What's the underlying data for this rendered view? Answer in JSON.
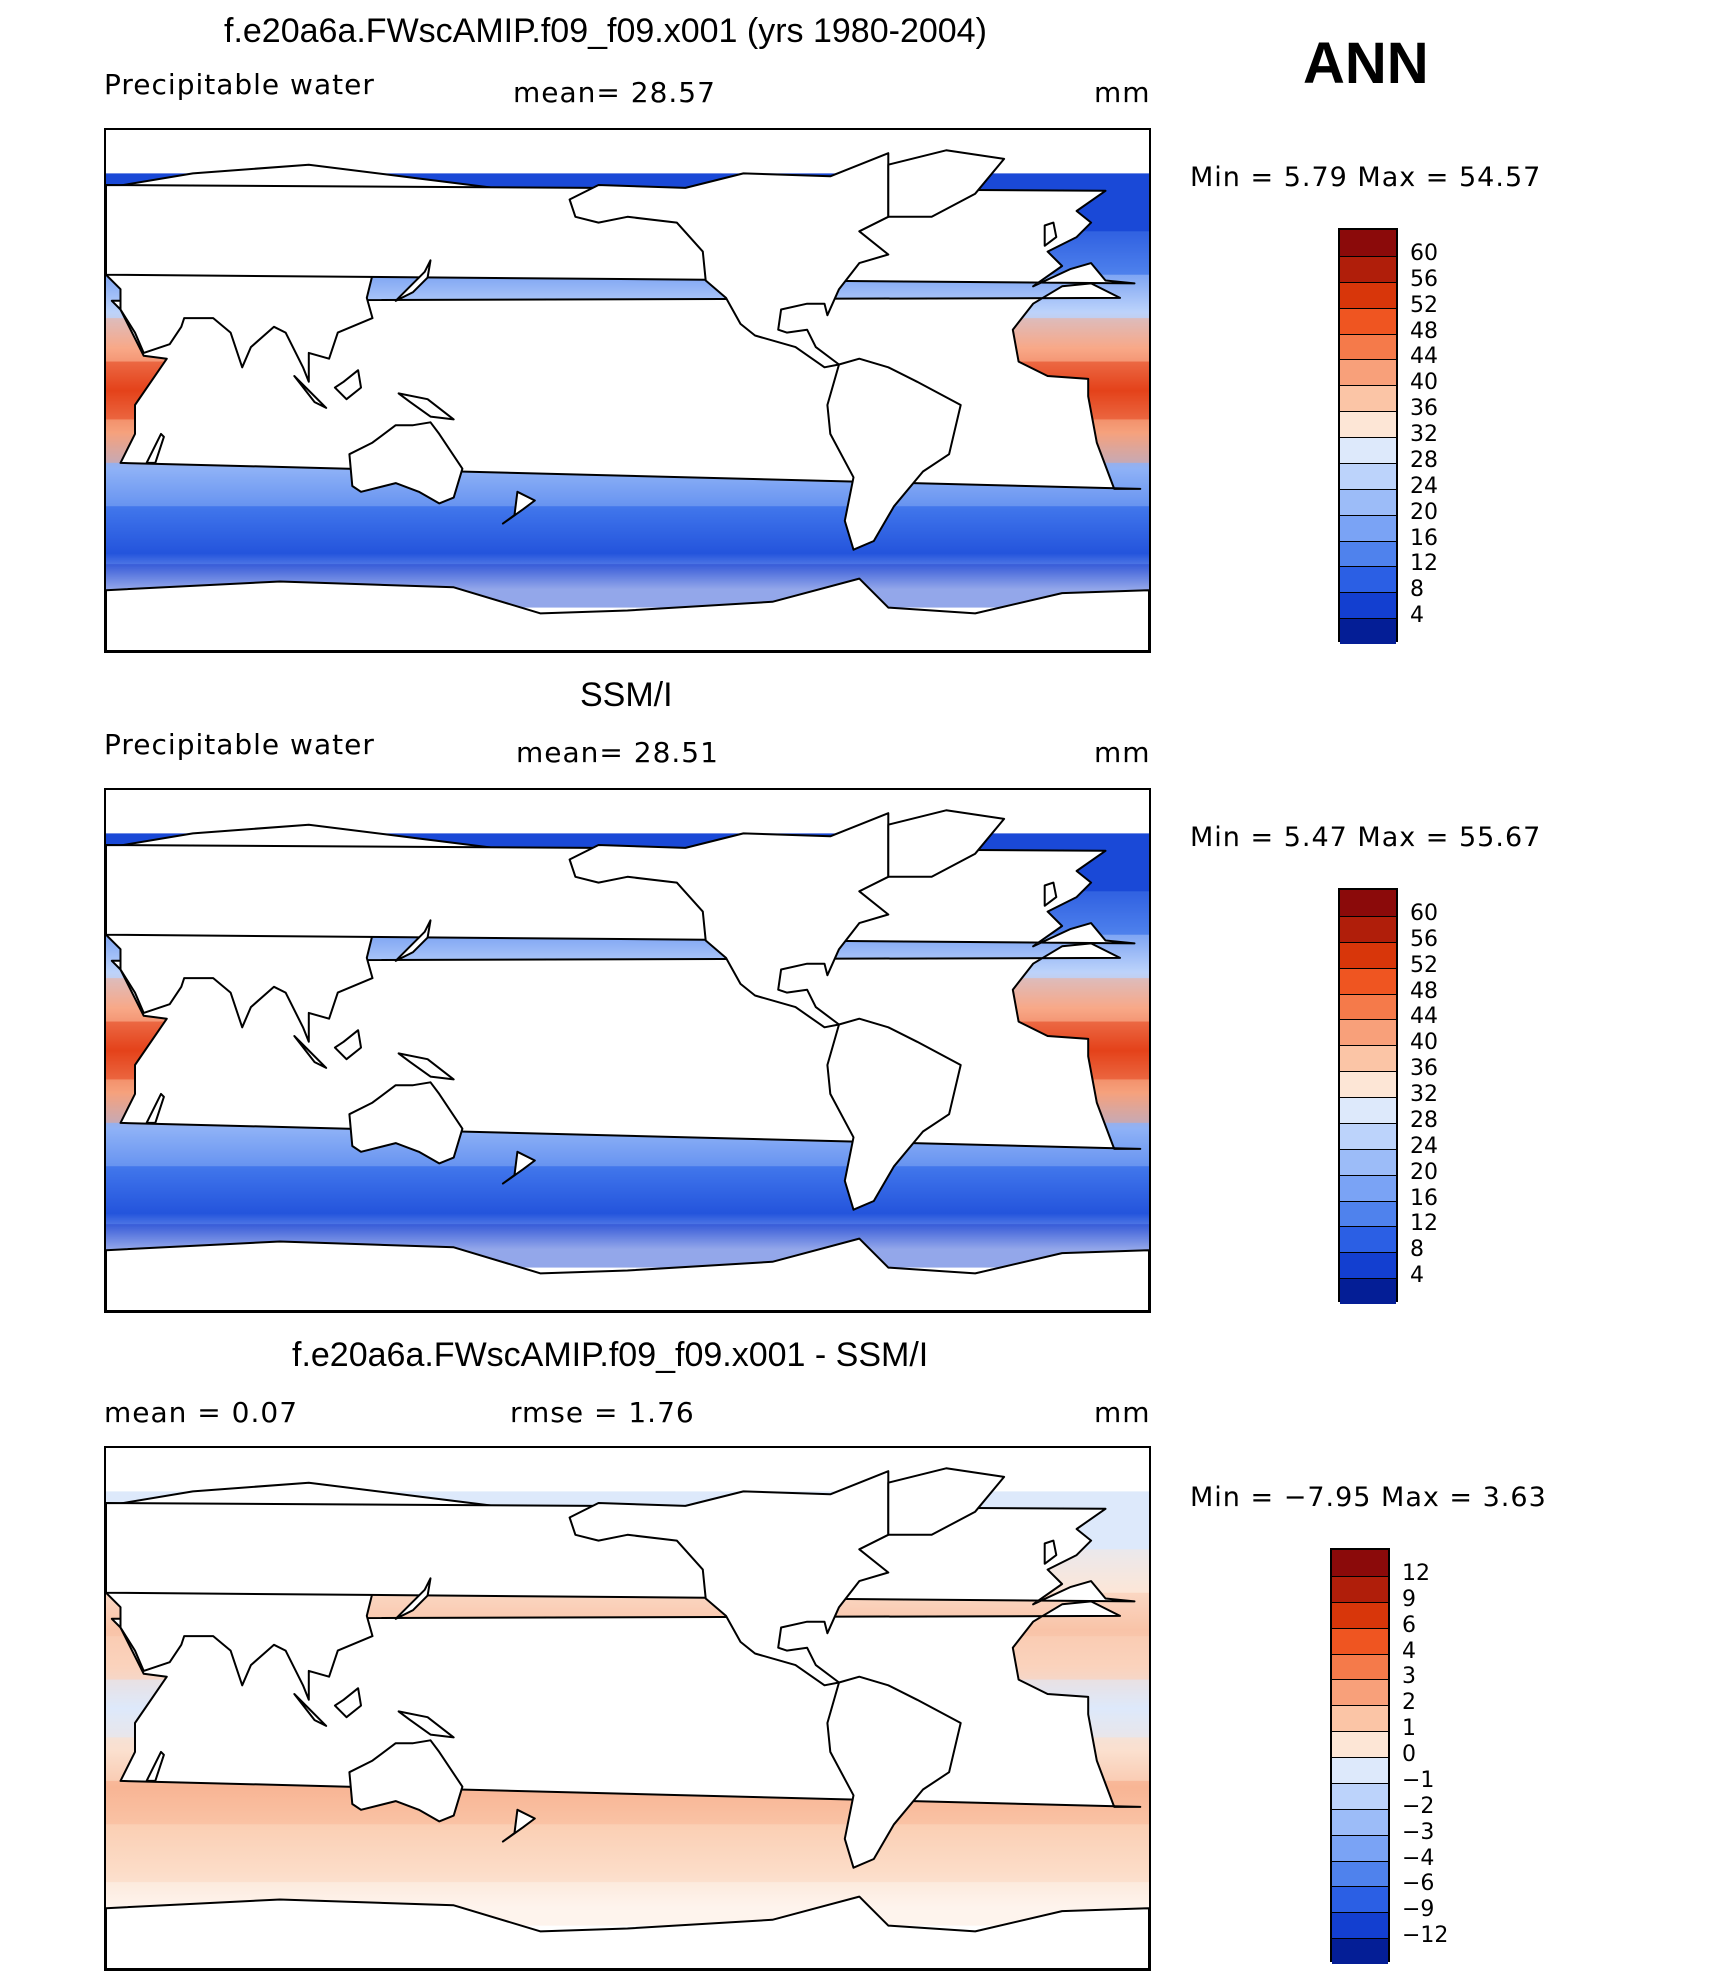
{
  "season": "ANN",
  "panels": [
    {
      "id": "model",
      "title": "f.e20a6a.FWscAMIP.f09_f09.x001 (yrs 1980-2004)",
      "left_label": "Precipitable  water",
      "center_label": "mean=   28.57",
      "units": "mm",
      "minmax": "Min  =      5.79  Max  =      54.57",
      "colorbar": {
        "labels": [
          "60",
          "56",
          "52",
          "48",
          "44",
          "40",
          "36",
          "32",
          "28",
          "24",
          "20",
          "16",
          "12",
          "8",
          "4"
        ],
        "colors": [
          "#8b0a0a",
          "#b01e0a",
          "#d8360a",
          "#ef5521",
          "#f57a4a",
          "#f8a07a",
          "#fbc5a6",
          "#fde6d6",
          "#dde9fb",
          "#bcd3fb",
          "#9cbcf8",
          "#7aa3f5",
          "#4f82ed",
          "#2b5fe4",
          "#133fd0",
          "#041e96"
        ]
      },
      "map": {
        "zones": [
          {
            "lat_range": [
              -90,
              -75
            ],
            "value": "land",
            "color": "#ffffff"
          },
          {
            "lat_range": [
              -75,
              -60
            ],
            "value": "4-12",
            "color": "#0f3bd0"
          },
          {
            "lat_range": [
              -60,
              -40
            ],
            "value": "12-20",
            "color": "#3f74ea"
          },
          {
            "lat_range": [
              -40,
              -25
            ],
            "value": "20-32",
            "color": "#8fb2f7"
          },
          {
            "lat_range": [
              -25,
              -10
            ],
            "value": "36-44",
            "color": "#f6a17d"
          },
          {
            "lat_range": [
              -10,
              10
            ],
            "value": "48-56",
            "color": "#e4421a"
          },
          {
            "lat_range": [
              10,
              25
            ],
            "value": "36-44",
            "color": "#f8a888"
          },
          {
            "lat_range": [
              25,
              40
            ],
            "value": "24-32",
            "color": "#bcd3fb"
          },
          {
            "lat_range": [
              40,
              55
            ],
            "value": "12-20",
            "color": "#4f82ed"
          },
          {
            "lat_range": [
              55,
              75
            ],
            "value": "4-12",
            "color": "#1a49d8"
          }
        ]
      }
    },
    {
      "id": "obs",
      "title": "SSM/I",
      "left_label": "Precipitable  water",
      "center_label": "mean=   28.51",
      "units": "mm",
      "minmax": "Min  =      5.47  Max  =      55.67",
      "colorbar": {
        "labels": [
          "60",
          "56",
          "52",
          "48",
          "44",
          "40",
          "36",
          "32",
          "28",
          "24",
          "20",
          "16",
          "12",
          "8",
          "4"
        ],
        "colors": [
          "#8b0a0a",
          "#b01e0a",
          "#d8360a",
          "#ef5521",
          "#f57a4a",
          "#f8a07a",
          "#fbc5a6",
          "#fde6d6",
          "#dde9fb",
          "#bcd3fb",
          "#9cbcf8",
          "#7aa3f5",
          "#4f82ed",
          "#2b5fe4",
          "#133fd0",
          "#041e96"
        ]
      },
      "map": {
        "zones": [
          {
            "lat_range": [
              -90,
              -75
            ],
            "value": "land",
            "color": "#ffffff"
          },
          {
            "lat_range": [
              -75,
              -60
            ],
            "value": "4-12",
            "color": "#0f3bd0"
          },
          {
            "lat_range": [
              -60,
              -40
            ],
            "value": "12-20",
            "color": "#3f74ea"
          },
          {
            "lat_range": [
              -40,
              -25
            ],
            "value": "20-32",
            "color": "#8fb2f7"
          },
          {
            "lat_range": [
              -25,
              -10
            ],
            "value": "36-44",
            "color": "#f6a17d"
          },
          {
            "lat_range": [
              -10,
              10
            ],
            "value": "48-56",
            "color": "#e4421a"
          },
          {
            "lat_range": [
              10,
              25
            ],
            "value": "36-44",
            "color": "#f8a888"
          },
          {
            "lat_range": [
              25,
              40
            ],
            "value": "24-32",
            "color": "#bcd3fb"
          },
          {
            "lat_range": [
              40,
              55
            ],
            "value": "12-20",
            "color": "#4f82ed"
          },
          {
            "lat_range": [
              55,
              75
            ],
            "value": "4-12",
            "color": "#1a49d8"
          }
        ]
      }
    },
    {
      "id": "diff",
      "title": "f.e20a6a.FWscAMIP.f09_f09.x001 - SSM/I",
      "left_label": "mean  =     0.07",
      "center_label": "rmse  =     1.76",
      "units": "mm",
      "minmax": "Min  =   −7.95  Max  =       3.63",
      "colorbar": {
        "labels": [
          "12",
          "9",
          "6",
          "4",
          "3",
          "2",
          "1",
          "0",
          "−1",
          "−2",
          "−3",
          "−4",
          "−6",
          "−9",
          "−12"
        ],
        "colors": [
          "#8b0a0a",
          "#b01e0a",
          "#d8360a",
          "#ef5521",
          "#f57a4a",
          "#f8a07a",
          "#fbc5a6",
          "#fde6d6",
          "#dde9fb",
          "#bcd3fb",
          "#9cbcf8",
          "#7aa3f5",
          "#4f82ed",
          "#2b5fe4",
          "#133fd0",
          "#041e96"
        ]
      },
      "map": {
        "zones": [
          {
            "lat_range": [
              -90,
              -75
            ],
            "value": "land",
            "color": "#ffffff"
          },
          {
            "lat_range": [
              -75,
              -60
            ],
            "value": "0-1",
            "color": "#fde6d6"
          },
          {
            "lat_range": [
              -60,
              -40
            ],
            "value": "1-2",
            "color": "#fbd0b6"
          },
          {
            "lat_range": [
              -40,
              -25
            ],
            "value": "1-3",
            "color": "#f8b595"
          },
          {
            "lat_range": [
              -25,
              -10
            ],
            "value": "0-1",
            "color": "#fbe0cf"
          },
          {
            "lat_range": [
              -10,
              10
            ],
            "value": "-1-0",
            "color": "#dde9fb"
          },
          {
            "lat_range": [
              10,
              25
            ],
            "value": "0-2",
            "color": "#fbd3bd"
          },
          {
            "lat_range": [
              25,
              40
            ],
            "value": "1-2",
            "color": "#f9c4a8"
          },
          {
            "lat_range": [
              40,
              55
            ],
            "value": "0-1",
            "color": "#fde6d6"
          },
          {
            "lat_range": [
              55,
              75
            ],
            "value": "-1-0",
            "color": "#dde9fb"
          }
        ]
      }
    }
  ]
}
